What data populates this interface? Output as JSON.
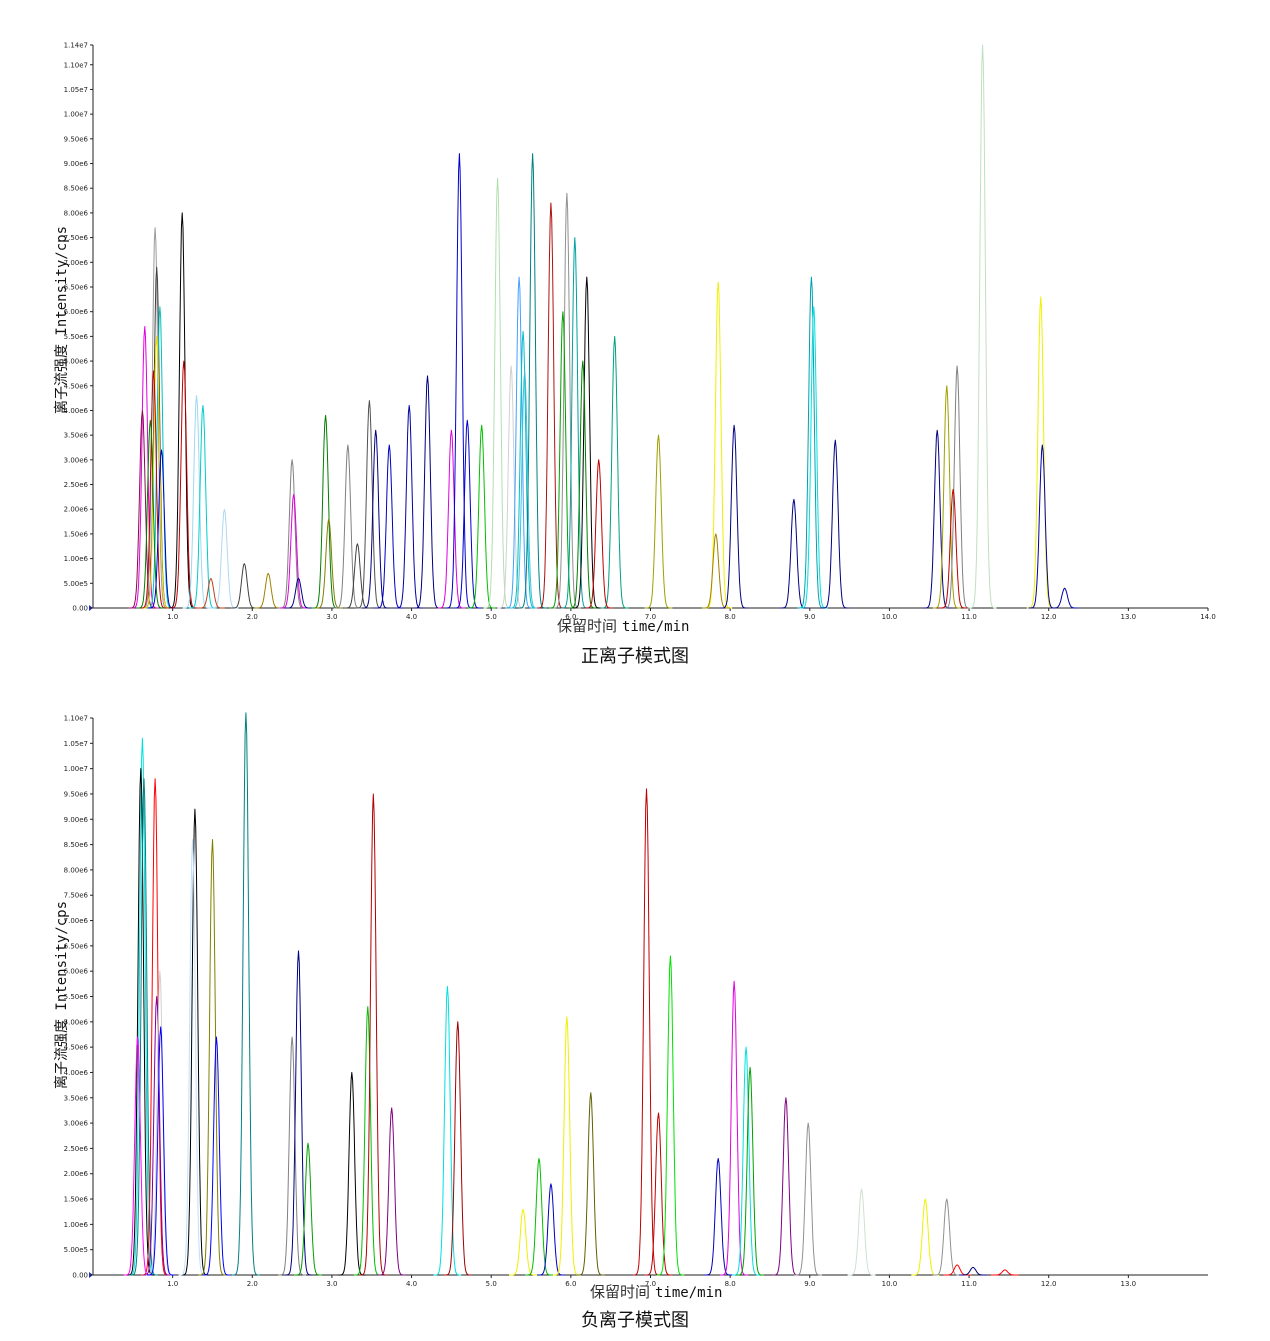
{
  "chart_data": [
    {
      "type": "line",
      "title": "正离子模式图",
      "xlabel_cn": "保留时间",
      "xlabel_en": "time/min",
      "ylabel": "离子流强度 Intensity/cps",
      "xlim": [
        0,
        14.0
      ],
      "ylim": [
        0,
        11400000
      ],
      "x_ticks": [
        "1.0",
        "2.0",
        "3.0",
        "4.0",
        "5.0",
        "6.0",
        "7.0",
        "8.0",
        "9.0",
        "10.0",
        "11.0",
        "12.0",
        "13.0",
        "14.0"
      ],
      "y_ticks": [
        "0.00",
        "5.00e5",
        "1.00e6",
        "1.50e6",
        "2.00e6",
        "2.50e6",
        "3.00e6",
        "3.50e6",
        "4.00e6",
        "4.50e6",
        "5.00e6",
        "5.50e6",
        "6.00e6",
        "6.50e6",
        "7.00e6",
        "7.50e6",
        "8.00e6",
        "8.50e6",
        "9.00e6",
        "9.50e6",
        "1.00e7",
        "1.05e7",
        "1.10e7",
        "1.14e7"
      ],
      "peaks": [
        {
          "rt": 0.65,
          "h": 5700000,
          "c": "#e000e0"
        },
        {
          "rt": 0.62,
          "h": 4000000,
          "c": "#8b0a50"
        },
        {
          "rt": 0.78,
          "h": 7700000,
          "c": "#9a9a9a"
        },
        {
          "rt": 0.8,
          "h": 6900000,
          "c": "#404040"
        },
        {
          "rt": 0.84,
          "h": 6100000,
          "c": "#00c0c0"
        },
        {
          "rt": 0.8,
          "h": 5500000,
          "c": "#f0e000"
        },
        {
          "rt": 0.76,
          "h": 4800000,
          "c": "#c00000"
        },
        {
          "rt": 0.72,
          "h": 3800000,
          "c": "#008000"
        },
        {
          "rt": 0.86,
          "h": 3200000,
          "c": "#0000c0"
        },
        {
          "rt": 1.12,
          "h": 8000000,
          "c": "#000000"
        },
        {
          "rt": 1.14,
          "h": 5000000,
          "c": "#c00000"
        },
        {
          "rt": 1.3,
          "h": 4300000,
          "c": "#9fd8ef"
        },
        {
          "rt": 1.38,
          "h": 4100000,
          "c": "#00cccc"
        },
        {
          "rt": 1.65,
          "h": 2000000,
          "c": "#b0d8f0"
        },
        {
          "rt": 1.48,
          "h": 600000,
          "c": "#c04020"
        },
        {
          "rt": 1.9,
          "h": 900000,
          "c": "#404040"
        },
        {
          "rt": 2.2,
          "h": 700000,
          "c": "#a08000"
        },
        {
          "rt": 2.5,
          "h": 3000000,
          "c": "#808080"
        },
        {
          "rt": 2.52,
          "h": 2300000,
          "c": "#e000e0"
        },
        {
          "rt": 2.58,
          "h": 600000,
          "c": "#000080"
        },
        {
          "rt": 2.92,
          "h": 3900000,
          "c": "#008000"
        },
        {
          "rt": 2.96,
          "h": 1800000,
          "c": "#808000"
        },
        {
          "rt": 3.2,
          "h": 3300000,
          "c": "#808080"
        },
        {
          "rt": 3.32,
          "h": 1300000,
          "c": "#404040"
        },
        {
          "rt": 3.47,
          "h": 4200000,
          "c": "#505050"
        },
        {
          "rt": 3.55,
          "h": 3600000,
          "c": "#000080"
        },
        {
          "rt": 3.72,
          "h": 3300000,
          "c": "#0000c0"
        },
        {
          "rt": 3.97,
          "h": 4100000,
          "c": "#0000a0"
        },
        {
          "rt": 4.2,
          "h": 4700000,
          "c": "#000080"
        },
        {
          "rt": 4.5,
          "h": 3600000,
          "c": "#e000e0"
        },
        {
          "rt": 4.6,
          "h": 9200000,
          "c": "#0000cc"
        },
        {
          "rt": 4.7,
          "h": 3800000,
          "c": "#0000cc"
        },
        {
          "rt": 4.88,
          "h": 3700000,
          "c": "#00c000"
        },
        {
          "rt": 5.08,
          "h": 8700000,
          "c": "#b0e0b0"
        },
        {
          "rt": 5.25,
          "h": 4900000,
          "c": "#d0d0d0"
        },
        {
          "rt": 5.35,
          "h": 6700000,
          "c": "#40a0ff"
        },
        {
          "rt": 5.4,
          "h": 5600000,
          "c": "#00c0c0"
        },
        {
          "rt": 5.42,
          "h": 4800000,
          "c": "#40c0e0"
        },
        {
          "rt": 5.52,
          "h": 9200000,
          "c": "#008080"
        },
        {
          "rt": 5.75,
          "h": 8200000,
          "c": "#b01010"
        },
        {
          "rt": 5.95,
          "h": 8400000,
          "c": "#909090"
        },
        {
          "rt": 5.9,
          "h": 6000000,
          "c": "#00a000"
        },
        {
          "rt": 6.05,
          "h": 7500000,
          "c": "#00a0a0"
        },
        {
          "rt": 6.2,
          "h": 6700000,
          "c": "#000000"
        },
        {
          "rt": 6.15,
          "h": 5000000,
          "c": "#008000"
        },
        {
          "rt": 6.55,
          "h": 5500000,
          "c": "#00a080"
        },
        {
          "rt": 6.35,
          "h": 3000000,
          "c": "#c00000"
        },
        {
          "rt": 7.1,
          "h": 3500000,
          "c": "#a0a000"
        },
        {
          "rt": 7.85,
          "h": 6600000,
          "c": "#f0f000"
        },
        {
          "rt": 7.82,
          "h": 1500000,
          "c": "#a08000"
        },
        {
          "rt": 8.05,
          "h": 3700000,
          "c": "#000080"
        },
        {
          "rt": 8.8,
          "h": 2200000,
          "c": "#000080"
        },
        {
          "rt": 9.02,
          "h": 6700000,
          "c": "#00a0b0"
        },
        {
          "rt": 9.05,
          "h": 6100000,
          "c": "#00e0e0"
        },
        {
          "rt": 9.32,
          "h": 3400000,
          "c": "#000080"
        },
        {
          "rt": 10.6,
          "h": 3600000,
          "c": "#000080"
        },
        {
          "rt": 10.72,
          "h": 4500000,
          "c": "#a0a000"
        },
        {
          "rt": 10.85,
          "h": 4900000,
          "c": "#808080"
        },
        {
          "rt": 10.8,
          "h": 2400000,
          "c": "#c00000"
        },
        {
          "rt": 11.17,
          "h": 11400000,
          "c": "#c0e0c0"
        },
        {
          "rt": 11.9,
          "h": 6300000,
          "c": "#f0f000"
        },
        {
          "rt": 11.92,
          "h": 3300000,
          "c": "#0000a0"
        },
        {
          "rt": 12.2,
          "h": 400000,
          "c": "#0000a0"
        }
      ]
    },
    {
      "type": "line",
      "title": "负离子模式图",
      "xlabel_cn": "保留时间",
      "xlabel_en": "time/min",
      "ylabel": "离子流强度 Intensity/cps",
      "xlim": [
        0,
        14.0
      ],
      "ylim": [
        0,
        11000000
      ],
      "x_ticks": [
        "1.0",
        "2.0",
        "3.0",
        "4.0",
        "5.0",
        "6.0",
        "7.0",
        "8.0",
        "9.0",
        "10.0",
        "11.0",
        "12.0",
        "13.0"
      ],
      "y_ticks": [
        "0.00",
        "5.00e5",
        "1.00e6",
        "1.50e6",
        "2.00e6",
        "2.50e6",
        "3.00e6",
        "3.50e6",
        "4.00e6",
        "4.50e6",
        "5.00e6",
        "5.50e6",
        "6.00e6",
        "6.50e6",
        "7.00e6",
        "7.50e6",
        "8.00e6",
        "8.50e6",
        "9.00e6",
        "9.50e6",
        "1.00e7",
        "1.05e7",
        "1.10e7"
      ],
      "peaks": [
        {
          "rt": 0.62,
          "h": 10600000,
          "c": "#00e0e0"
        },
        {
          "rt": 0.6,
          "h": 10000000,
          "c": "#000000"
        },
        {
          "rt": 0.64,
          "h": 9800000,
          "c": "#008080"
        },
        {
          "rt": 0.78,
          "h": 9800000,
          "c": "#ff0000"
        },
        {
          "rt": 0.56,
          "h": 4700000,
          "c": "#ff00ff"
        },
        {
          "rt": 0.8,
          "h": 5500000,
          "c": "#8000a0"
        },
        {
          "rt": 0.84,
          "h": 6000000,
          "c": "#d0d0d0"
        },
        {
          "rt": 0.85,
          "h": 4900000,
          "c": "#0000ff"
        },
        {
          "rt": 1.28,
          "h": 9200000,
          "c": "#000000"
        },
        {
          "rt": 1.25,
          "h": 8600000,
          "c": "#c0e0ff"
        },
        {
          "rt": 1.5,
          "h": 8600000,
          "c": "#808000"
        },
        {
          "rt": 1.55,
          "h": 4700000,
          "c": "#0000ff"
        },
        {
          "rt": 1.92,
          "h": 11100000,
          "c": "#008080"
        },
        {
          "rt": 2.5,
          "h": 4700000,
          "c": "#808080"
        },
        {
          "rt": 2.58,
          "h": 6400000,
          "c": "#000080"
        },
        {
          "rt": 2.7,
          "h": 2600000,
          "c": "#00a000"
        },
        {
          "rt": 3.25,
          "h": 4000000,
          "c": "#000000"
        },
        {
          "rt": 3.45,
          "h": 5300000,
          "c": "#00c000"
        },
        {
          "rt": 3.52,
          "h": 9500000,
          "c": "#b00000"
        },
        {
          "rt": 3.75,
          "h": 3300000,
          "c": "#800080"
        },
        {
          "rt": 4.45,
          "h": 5700000,
          "c": "#00e0e0"
        },
        {
          "rt": 4.58,
          "h": 5000000,
          "c": "#a00000"
        },
        {
          "rt": 5.4,
          "h": 1300000,
          "c": "#f0f000"
        },
        {
          "rt": 5.6,
          "h": 2300000,
          "c": "#00c000"
        },
        {
          "rt": 5.75,
          "h": 1800000,
          "c": "#0000c0"
        },
        {
          "rt": 5.95,
          "h": 5100000,
          "c": "#f0f000"
        },
        {
          "rt": 6.25,
          "h": 3600000,
          "c": "#606000"
        },
        {
          "rt": 6.95,
          "h": 9600000,
          "c": "#c00000"
        },
        {
          "rt": 7.1,
          "h": 3200000,
          "c": "#c00000"
        },
        {
          "rt": 7.25,
          "h": 6300000,
          "c": "#00e000"
        },
        {
          "rt": 7.85,
          "h": 2300000,
          "c": "#0000c0"
        },
        {
          "rt": 8.05,
          "h": 5800000,
          "c": "#e000e0"
        },
        {
          "rt": 8.2,
          "h": 4500000,
          "c": "#00e0e0"
        },
        {
          "rt": 8.25,
          "h": 4100000,
          "c": "#00a000"
        },
        {
          "rt": 8.7,
          "h": 3500000,
          "c": "#800080"
        },
        {
          "rt": 8.98,
          "h": 3000000,
          "c": "#909090"
        },
        {
          "rt": 9.65,
          "h": 1700000,
          "c": "#d0e0d0"
        },
        {
          "rt": 10.45,
          "h": 1500000,
          "c": "#f0f000"
        },
        {
          "rt": 10.72,
          "h": 1500000,
          "c": "#909090"
        },
        {
          "rt": 10.85,
          "h": 200000,
          "c": "#ff0000"
        },
        {
          "rt": 11.05,
          "h": 150000,
          "c": "#000080"
        },
        {
          "rt": 11.45,
          "h": 100000,
          "c": "#ff0000"
        }
      ]
    }
  ]
}
